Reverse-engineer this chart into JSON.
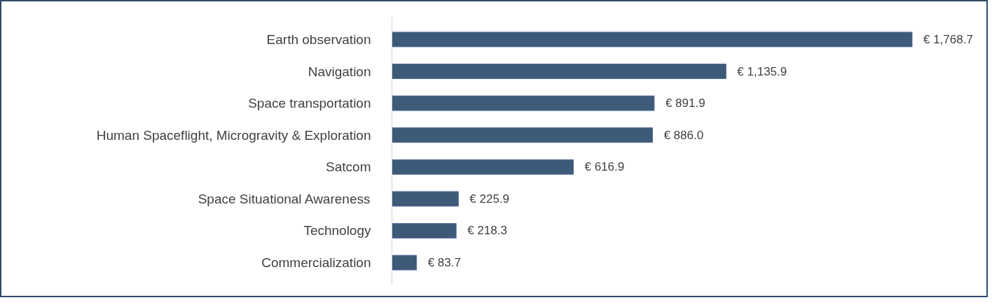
{
  "chart_data": {
    "type": "bar",
    "orientation": "horizontal",
    "categories": [
      "Earth observation",
      "Navigation",
      "Space transportation",
      "Human Spaceflight, Microgravity & Exploration",
      "Satcom",
      "Space Situational Awareness",
      "Technology",
      "Commercialization"
    ],
    "values": [
      1768.7,
      1135.9,
      891.9,
      886.0,
      616.9,
      225.9,
      218.3,
      83.7
    ],
    "value_labels": [
      "€ 1,768.7",
      "€ 1,135.9",
      "€ 891.9",
      "€ 886.0",
      "€ 616.9",
      "€ 225.9",
      "€ 218.3",
      "€ 83.7"
    ],
    "color": "#3d5a78"
  }
}
